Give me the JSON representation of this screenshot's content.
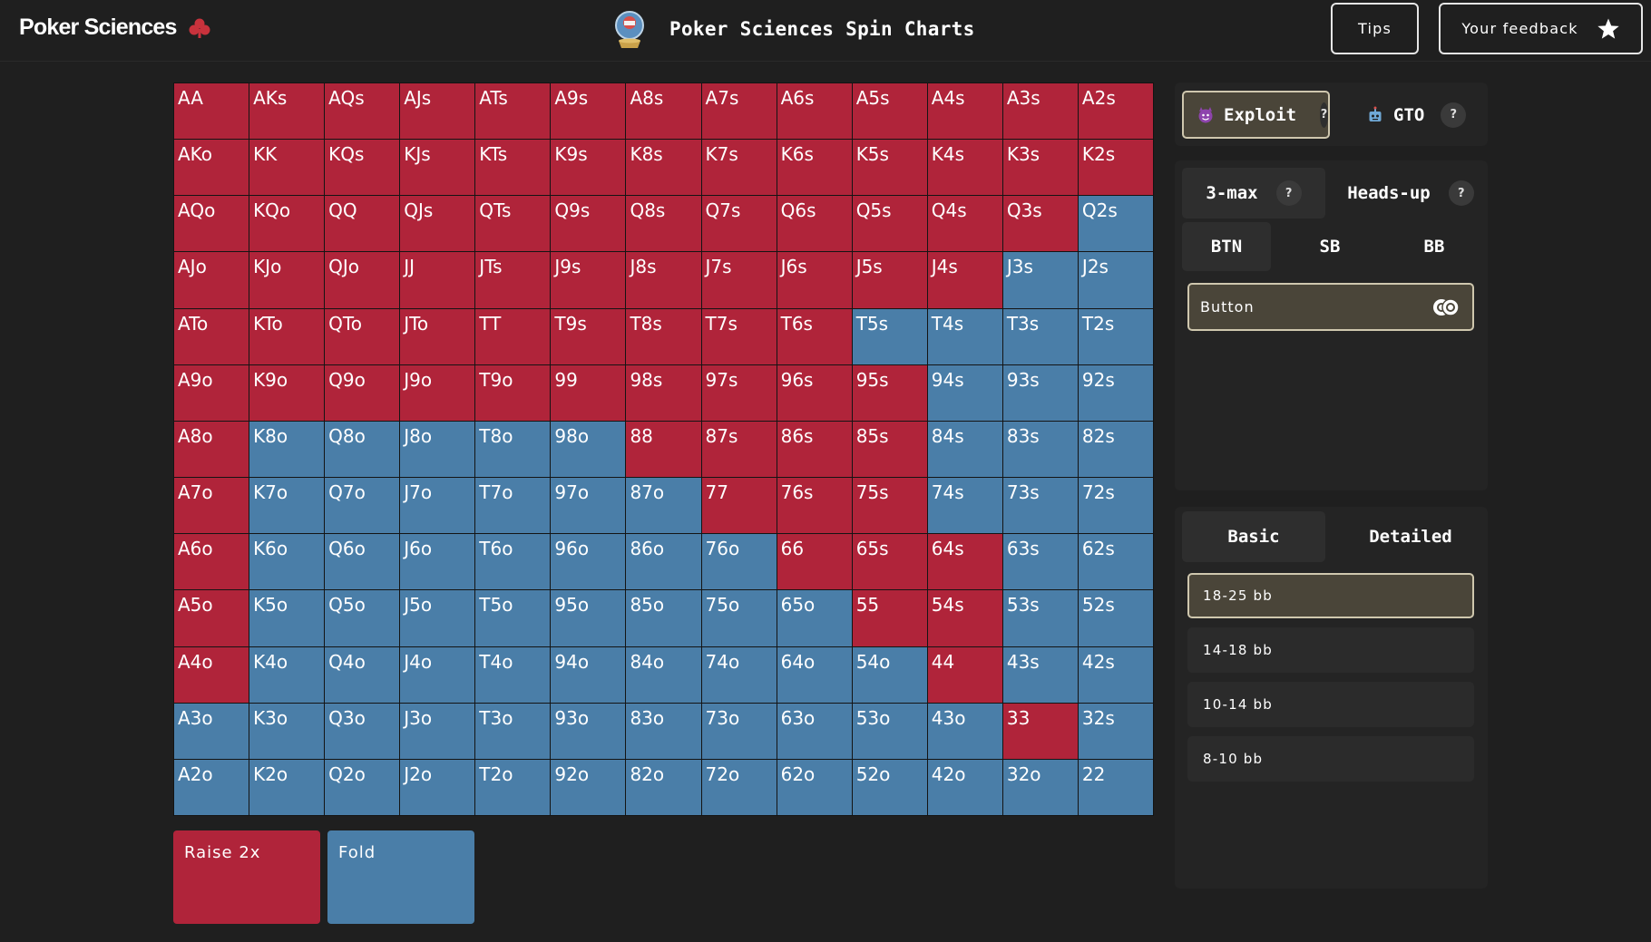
{
  "header": {
    "brand": "Poker Sciences",
    "title": "Poker Sciences Spin Charts",
    "tips_label": "Tips",
    "feedback_label": "Your feedback"
  },
  "colors": {
    "raise": "#b0243a",
    "fold": "#4a7ea8",
    "background": "#1f1f1f",
    "selected": "#4a4539"
  },
  "grid": {
    "rows": [
      [
        [
          "AA",
          "raise"
        ],
        [
          "AKs",
          "raise"
        ],
        [
          "AQs",
          "raise"
        ],
        [
          "AJs",
          "raise"
        ],
        [
          "ATs",
          "raise"
        ],
        [
          "A9s",
          "raise"
        ],
        [
          "A8s",
          "raise"
        ],
        [
          "A7s",
          "raise"
        ],
        [
          "A6s",
          "raise"
        ],
        [
          "A5s",
          "raise"
        ],
        [
          "A4s",
          "raise"
        ],
        [
          "A3s",
          "raise"
        ],
        [
          "A2s",
          "raise"
        ]
      ],
      [
        [
          "AKo",
          "raise"
        ],
        [
          "KK",
          "raise"
        ],
        [
          "KQs",
          "raise"
        ],
        [
          "KJs",
          "raise"
        ],
        [
          "KTs",
          "raise"
        ],
        [
          "K9s",
          "raise"
        ],
        [
          "K8s",
          "raise"
        ],
        [
          "K7s",
          "raise"
        ],
        [
          "K6s",
          "raise"
        ],
        [
          "K5s",
          "raise"
        ],
        [
          "K4s",
          "raise"
        ],
        [
          "K3s",
          "raise"
        ],
        [
          "K2s",
          "raise"
        ]
      ],
      [
        [
          "AQo",
          "raise"
        ],
        [
          "KQo",
          "raise"
        ],
        [
          "QQ",
          "raise"
        ],
        [
          "QJs",
          "raise"
        ],
        [
          "QTs",
          "raise"
        ],
        [
          "Q9s",
          "raise"
        ],
        [
          "Q8s",
          "raise"
        ],
        [
          "Q7s",
          "raise"
        ],
        [
          "Q6s",
          "raise"
        ],
        [
          "Q5s",
          "raise"
        ],
        [
          "Q4s",
          "raise"
        ],
        [
          "Q3s",
          "raise"
        ],
        [
          "Q2s",
          "fold"
        ]
      ],
      [
        [
          "AJo",
          "raise"
        ],
        [
          "KJo",
          "raise"
        ],
        [
          "QJo",
          "raise"
        ],
        [
          "JJ",
          "raise"
        ],
        [
          "JTs",
          "raise"
        ],
        [
          "J9s",
          "raise"
        ],
        [
          "J8s",
          "raise"
        ],
        [
          "J7s",
          "raise"
        ],
        [
          "J6s",
          "raise"
        ],
        [
          "J5s",
          "raise"
        ],
        [
          "J4s",
          "raise"
        ],
        [
          "J3s",
          "fold"
        ],
        [
          "J2s",
          "fold"
        ]
      ],
      [
        [
          "ATo",
          "raise"
        ],
        [
          "KTo",
          "raise"
        ],
        [
          "QTo",
          "raise"
        ],
        [
          "JTo",
          "raise"
        ],
        [
          "TT",
          "raise"
        ],
        [
          "T9s",
          "raise"
        ],
        [
          "T8s",
          "raise"
        ],
        [
          "T7s",
          "raise"
        ],
        [
          "T6s",
          "raise"
        ],
        [
          "T5s",
          "fold"
        ],
        [
          "T4s",
          "fold"
        ],
        [
          "T3s",
          "fold"
        ],
        [
          "T2s",
          "fold"
        ]
      ],
      [
        [
          "A9o",
          "raise"
        ],
        [
          "K9o",
          "raise"
        ],
        [
          "Q9o",
          "raise"
        ],
        [
          "J9o",
          "raise"
        ],
        [
          "T9o",
          "raise"
        ],
        [
          "99",
          "raise"
        ],
        [
          "98s",
          "raise"
        ],
        [
          "97s",
          "raise"
        ],
        [
          "96s",
          "raise"
        ],
        [
          "95s",
          "raise"
        ],
        [
          "94s",
          "fold"
        ],
        [
          "93s",
          "fold"
        ],
        [
          "92s",
          "fold"
        ]
      ],
      [
        [
          "A8o",
          "raise"
        ],
        [
          "K8o",
          "fold"
        ],
        [
          "Q8o",
          "fold"
        ],
        [
          "J8o",
          "fold"
        ],
        [
          "T8o",
          "fold"
        ],
        [
          "98o",
          "fold"
        ],
        [
          "88",
          "raise"
        ],
        [
          "87s",
          "raise"
        ],
        [
          "86s",
          "raise"
        ],
        [
          "85s",
          "raise"
        ],
        [
          "84s",
          "fold"
        ],
        [
          "83s",
          "fold"
        ],
        [
          "82s",
          "fold"
        ]
      ],
      [
        [
          "A7o",
          "raise"
        ],
        [
          "K7o",
          "fold"
        ],
        [
          "Q7o",
          "fold"
        ],
        [
          "J7o",
          "fold"
        ],
        [
          "T7o",
          "fold"
        ],
        [
          "97o",
          "fold"
        ],
        [
          "87o",
          "fold"
        ],
        [
          "77",
          "raise"
        ],
        [
          "76s",
          "raise"
        ],
        [
          "75s",
          "raise"
        ],
        [
          "74s",
          "fold"
        ],
        [
          "73s",
          "fold"
        ],
        [
          "72s",
          "fold"
        ]
      ],
      [
        [
          "A6o",
          "raise"
        ],
        [
          "K6o",
          "fold"
        ],
        [
          "Q6o",
          "fold"
        ],
        [
          "J6o",
          "fold"
        ],
        [
          "T6o",
          "fold"
        ],
        [
          "96o",
          "fold"
        ],
        [
          "86o",
          "fold"
        ],
        [
          "76o",
          "fold"
        ],
        [
          "66",
          "raise"
        ],
        [
          "65s",
          "raise"
        ],
        [
          "64s",
          "raise"
        ],
        [
          "63s",
          "fold"
        ],
        [
          "62s",
          "fold"
        ]
      ],
      [
        [
          "A5o",
          "raise"
        ],
        [
          "K5o",
          "fold"
        ],
        [
          "Q5o",
          "fold"
        ],
        [
          "J5o",
          "fold"
        ],
        [
          "T5o",
          "fold"
        ],
        [
          "95o",
          "fold"
        ],
        [
          "85o",
          "fold"
        ],
        [
          "75o",
          "fold"
        ],
        [
          "65o",
          "fold"
        ],
        [
          "55",
          "raise"
        ],
        [
          "54s",
          "raise"
        ],
        [
          "53s",
          "fold"
        ],
        [
          "52s",
          "fold"
        ]
      ],
      [
        [
          "A4o",
          "raise"
        ],
        [
          "K4o",
          "fold"
        ],
        [
          "Q4o",
          "fold"
        ],
        [
          "J4o",
          "fold"
        ],
        [
          "T4o",
          "fold"
        ],
        [
          "94o",
          "fold"
        ],
        [
          "84o",
          "fold"
        ],
        [
          "74o",
          "fold"
        ],
        [
          "64o",
          "fold"
        ],
        [
          "54o",
          "fold"
        ],
        [
          "44",
          "raise"
        ],
        [
          "43s",
          "fold"
        ],
        [
          "42s",
          "fold"
        ]
      ],
      [
        [
          "A3o",
          "fold"
        ],
        [
          "K3o",
          "fold"
        ],
        [
          "Q3o",
          "fold"
        ],
        [
          "J3o",
          "fold"
        ],
        [
          "T3o",
          "fold"
        ],
        [
          "93o",
          "fold"
        ],
        [
          "83o",
          "fold"
        ],
        [
          "73o",
          "fold"
        ],
        [
          "63o",
          "fold"
        ],
        [
          "53o",
          "fold"
        ],
        [
          "43o",
          "fold"
        ],
        [
          "33",
          "raise"
        ],
        [
          "32s",
          "fold"
        ]
      ],
      [
        [
          "A2o",
          "fold"
        ],
        [
          "K2o",
          "fold"
        ],
        [
          "Q2o",
          "fold"
        ],
        [
          "J2o",
          "fold"
        ],
        [
          "T2o",
          "fold"
        ],
        [
          "92o",
          "fold"
        ],
        [
          "82o",
          "fold"
        ],
        [
          "72o",
          "fold"
        ],
        [
          "62o",
          "fold"
        ],
        [
          "52o",
          "fold"
        ],
        [
          "42o",
          "fold"
        ],
        [
          "32o",
          "fold"
        ],
        [
          "22",
          "fold"
        ]
      ]
    ]
  },
  "legend": {
    "raise_label": "Raise 2x",
    "fold_label": "Fold"
  },
  "panel": {
    "modes": {
      "exploit": "Exploit",
      "gto": "GTO",
      "selected": "Exploit",
      "help": "?"
    },
    "formats": {
      "three_max": "3-max",
      "heads_up": "Heads-up",
      "selected": "3-max",
      "help": "?"
    },
    "positions": {
      "btn": "BTN",
      "sb": "SB",
      "bb": "BB",
      "selected": "BTN"
    },
    "position_name": "Button",
    "views": {
      "basic": "Basic",
      "detailed": "Detailed",
      "selected": "Basic"
    },
    "stacks": [
      "18-25 bb",
      "14-18 bb",
      "10-14 bb",
      "8-10 bb"
    ],
    "selected_stack": "18-25 bb"
  }
}
